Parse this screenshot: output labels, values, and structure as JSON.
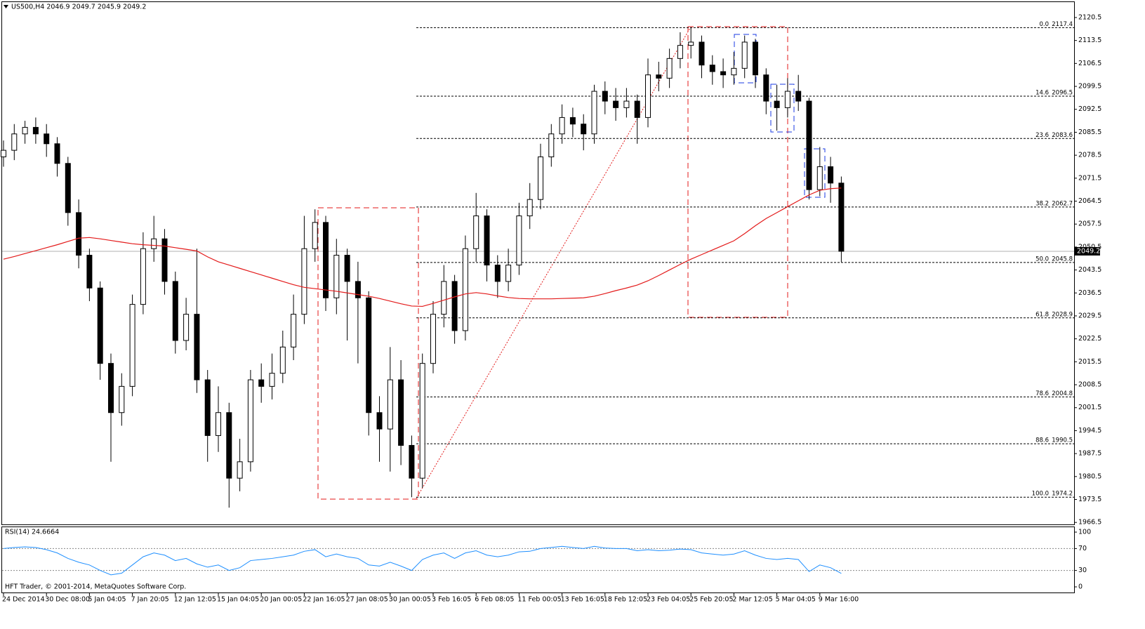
{
  "chart_data": [
    {
      "type": "candlestick",
      "title": "US500,H4  2046.9 2049.7 2045.9 2049.2",
      "categories": [
        "24 Dec 2014",
        null,
        null,
        null,
        "30 Dec 08:00",
        null,
        null,
        null,
        "5 Jan 04:05",
        null,
        null,
        null,
        "7 Jan 20:05",
        null,
        null,
        null,
        "12 Jan 12:05",
        null,
        null,
        null,
        "15 Jan 04:05",
        null,
        null,
        null,
        "20 Jan 00:05",
        null,
        null,
        null,
        "22 Jan 16:05",
        null,
        null,
        null,
        "27 Jan 08:05",
        null,
        null,
        null,
        "30 Jan 00:05",
        null,
        null,
        null,
        "3 Feb 16:05",
        null,
        null,
        null,
        "6 Feb 08:05",
        null,
        null,
        null,
        "11 Feb 00:05",
        null,
        null,
        null,
        "13 Feb 16:05",
        null,
        null,
        null,
        "18 Feb 12:05",
        null,
        null,
        null,
        "23 Feb 04:05",
        null,
        null,
        null,
        "25 Feb 20:05",
        null,
        null,
        null,
        "2 Mar 12:05",
        null,
        null,
        null,
        "5 Mar 04:05",
        null,
        null,
        null,
        "9 Mar 16:00",
        null,
        null
      ],
      "open": [
        2078,
        2080,
        2085,
        2087,
        2085,
        2082,
        2076,
        2061,
        2048,
        2038,
        2015,
        2000,
        2008,
        2033,
        2050,
        2053,
        2040,
        2022,
        2030,
        2010,
        1993,
        2000,
        1980,
        1985,
        2010,
        2008,
        2012,
        2020,
        2030,
        2050,
        2058,
        2035,
        2048,
        2040,
        2035,
        2000,
        1995,
        2010,
        1990,
        1980,
        2015,
        2030,
        2040,
        2025,
        2050,
        2060,
        2045,
        2040,
        2045,
        2060,
        2065,
        2078,
        2085,
        2090,
        2088,
        2085,
        2098,
        2095,
        2093,
        2095,
        2090,
        2103,
        2102,
        2108,
        2112,
        2113,
        2106,
        2104,
        2103,
        2105,
        2113,
        2103,
        2095,
        2093,
        2098,
        2095,
        2068,
        2075,
        2070
      ],
      "high": [
        2083,
        2088,
        2089,
        2090,
        2088,
        2084,
        2078,
        2065,
        2050,
        2040,
        2018,
        2012,
        2036,
        2055,
        2060,
        2056,
        2043,
        2035,
        2050,
        2013,
        2008,
        2003,
        1992,
        2013,
        2015,
        2018,
        2025,
        2036,
        2060,
        2062,
        2060,
        2053,
        2050,
        2046,
        2037,
        2005,
        2020,
        2016,
        1993,
        2018,
        2034,
        2045,
        2042,
        2054,
        2067,
        2062,
        2048,
        2050,
        2064,
        2070,
        2082,
        2088,
        2094,
        2093,
        2091,
        2100,
        2101,
        2099,
        2099,
        2097,
        2108,
        2107,
        2111,
        2116,
        2117.4,
        2115,
        2109,
        2108,
        2110,
        2115,
        2114,
        2105,
        2100,
        2102,
        2103,
        2096,
        2081,
        2078,
        2072
      ],
      "low": [
        2075,
        2077,
        2082,
        2082,
        2078,
        2072,
        2057,
        2044,
        2034,
        2010,
        1985,
        1996,
        2005,
        2030,
        2046,
        2036,
        2018,
        2019,
        2006,
        1985,
        1988,
        1971,
        1976,
        1982,
        2003,
        2004,
        2009,
        2016,
        2027,
        2046,
        2031,
        2030,
        2022,
        2015,
        1993,
        1985,
        1982,
        1984,
        1974.2,
        1977,
        2012,
        2026,
        2021,
        2022,
        2046,
        2040,
        2035,
        2037,
        2042,
        2056,
        2062,
        2075,
        2082,
        2084,
        2080,
        2082,
        2091,
        2089,
        2090,
        2082,
        2087,
        2098,
        2099,
        2105,
        2108,
        2102,
        2100,
        2099,
        2100,
        2102,
        2099,
        2091,
        2086,
        2090,
        2092,
        2065,
        2066,
        2064,
        2045.9
      ],
      "close": [
        2080,
        2085,
        2087,
        2085,
        2082,
        2076,
        2061,
        2048,
        2038,
        2015,
        2000,
        2008,
        2033,
        2050,
        2053,
        2040,
        2022,
        2030,
        2010,
        1993,
        2000,
        1980,
        1985,
        2010,
        2008,
        2012,
        2020,
        2030,
        2050,
        2058,
        2035,
        2048,
        2040,
        2035,
        2000,
        1995,
        2010,
        1990,
        1980,
        2015,
        2030,
        2040,
        2025,
        2050,
        2060,
        2045,
        2040,
        2045,
        2060,
        2065,
        2078,
        2085,
        2090,
        2088,
        2085,
        2098,
        2095,
        2093,
        2095,
        2090,
        2103,
        2102,
        2108,
        2112,
        2113,
        2106,
        2104,
        2103,
        2105,
        2113,
        2103,
        2095,
        2093,
        2098,
        2095,
        2068,
        2075,
        2070,
        2049.2
      ],
      "ylim": [
        1965.9,
        2125.2
      ],
      "yticks": [
        1966.5,
        1973.5,
        1980.5,
        1987.5,
        1994.5,
        2001.5,
        2008.5,
        2015.5,
        2022.5,
        2029.5,
        2036.5,
        2043.5,
        2050.5,
        2057.5,
        2064.5,
        2071.5,
        2078.5,
        2085.5,
        2092.5,
        2099.5,
        2106.5,
        2113.5,
        2120.5
      ],
      "last_price": 2049.2,
      "fib": {
        "levels": [
          "0.0",
          "14.6",
          "23.6",
          "38.2",
          "50.0",
          "61.8",
          "78.6",
          "88.6",
          "100.0"
        ],
        "prices": [
          2117.4,
          2096.5,
          2083.6,
          2062.7,
          2045.8,
          2028.9,
          2004.8,
          1990.5,
          1974.2
        ]
      },
      "overlay": {
        "type": "line",
        "color": "#e31a1a",
        "values": [
          2046.8,
          2047.6,
          2048.5,
          2049.4,
          2050.3,
          2051.2,
          2052.2,
          2053.2,
          2053.4,
          2053.0,
          2052.5,
          2052.0,
          2051.5,
          2051.2,
          2051.0,
          2050.8,
          2050.3,
          2049.8,
          2049.3,
          2047.5,
          2046.0,
          2045.0,
          2044.0,
          2043.0,
          2042.0,
          2041.0,
          2040.0,
          2039.0,
          2038.2,
          2037.8,
          2037.4,
          2037.0,
          2036.5,
          2036.0,
          2035.5,
          2034.8,
          2034.0,
          2033.2,
          2032.5,
          2032.4,
          2033.3,
          2034.3,
          2035.3,
          2036.2,
          2036.6,
          2036.2,
          2035.6,
          2035.1,
          2034.8,
          2034.7,
          2034.7,
          2034.7,
          2034.8,
          2034.9,
          2035.0,
          2035.5,
          2036.3,
          2037.2,
          2038.0,
          2038.9,
          2040.2,
          2041.8,
          2043.5,
          2045.2,
          2046.8,
          2048.2,
          2049.6,
          2051.0,
          2052.4,
          2054.6,
          2057.0,
          2059.2,
          2061.0,
          2062.8,
          2064.6,
          2066.4,
          2067.8,
          2068.3,
          2068.5
        ]
      }
    },
    {
      "type": "line",
      "title": "RSI(14) 24.6664",
      "color": "#1e8fff",
      "values": [
        70,
        72,
        73,
        72,
        68,
        62,
        52,
        45,
        40,
        30,
        22,
        25,
        40,
        55,
        62,
        58,
        48,
        52,
        42,
        36,
        40,
        30,
        35,
        48,
        50,
        52,
        55,
        58,
        65,
        68,
        55,
        60,
        55,
        52,
        40,
        38,
        45,
        38,
        30,
        50,
        58,
        62,
        52,
        62,
        66,
        58,
        55,
        58,
        64,
        65,
        70,
        72,
        74,
        72,
        70,
        74,
        71,
        70,
        70,
        66,
        68,
        66,
        67,
        69,
        68,
        62,
        60,
        58,
        60,
        66,
        58,
        52,
        50,
        52,
        50,
        28,
        40,
        35,
        24.6664
      ],
      "ylim": [
        0,
        100
      ],
      "yticks": [
        0,
        30,
        70,
        100
      ],
      "levels": [
        30,
        70
      ]
    }
  ],
  "footer": "HFT Trader, © 2001-2014, MetaQuotes Software Corp."
}
